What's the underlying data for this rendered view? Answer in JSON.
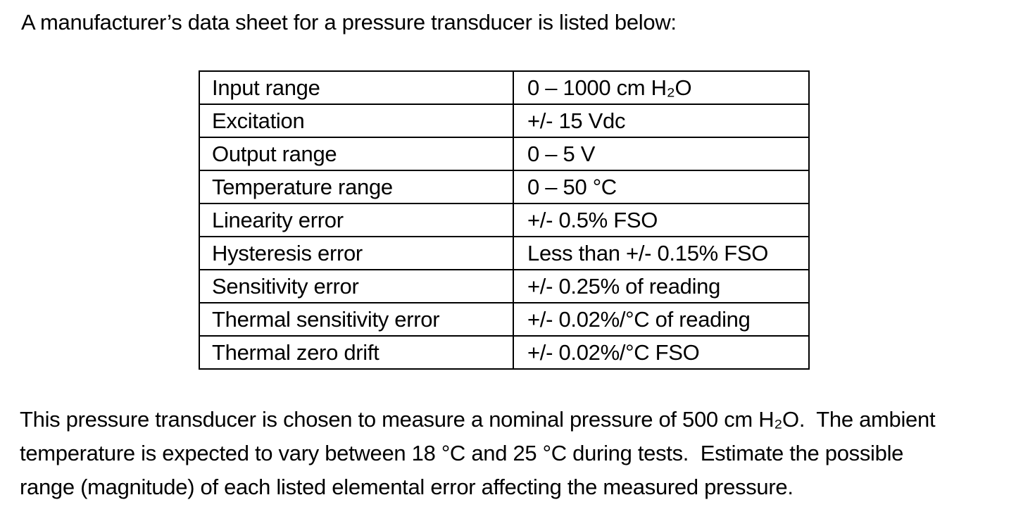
{
  "intro": "A manufacturer’s data sheet for a pressure transducer is listed below:",
  "table": {
    "rows": [
      {
        "label": "Input range",
        "value": "0 – 1000 cm H₂O"
      },
      {
        "label": "Excitation",
        "value": "+/- 15 Vdc"
      },
      {
        "label": "Output range",
        "value": "0 – 5 V"
      },
      {
        "label": "Temperature range",
        "value": "0 – 50 °C"
      },
      {
        "label": "Linearity error",
        "value": "+/- 0.5% FSO"
      },
      {
        "label": "Hysteresis error",
        "value": "Less than +/- 0.15% FSO"
      },
      {
        "label": "Sensitivity error",
        "value": "+/- 0.25% of reading"
      },
      {
        "label": "Thermal sensitivity error",
        "value": "+/- 0.02%/°C of reading"
      },
      {
        "label": "Thermal zero drift",
        "value": "+/- 0.02%/°C FSO"
      }
    ]
  },
  "paragraph": {
    "lines": [
      "This pressure transducer is chosen to measure a nominal pressure of 500 cm H₂O.  The ambient",
      "temperature is expected to vary between 18 °C and 25 °C during tests.  Estimate the possible",
      "range (magnitude) of each listed elemental error affecting the measured pressure."
    ]
  },
  "colors": {
    "text": "#000000",
    "background": "#ffffff",
    "table_border": "#000000"
  }
}
